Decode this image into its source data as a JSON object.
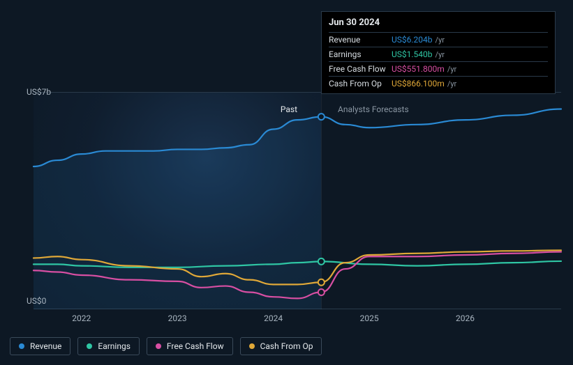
{
  "chart": {
    "y_axis": {
      "top_label": "US$7b",
      "bottom_label": "US$0",
      "min": 0,
      "max": 7
    },
    "x_axis": {
      "labels": [
        "2022",
        "2023",
        "2024",
        "2025",
        "2026"
      ],
      "min": 2021.5,
      "max": 2027.0,
      "past_end": 2024.5
    },
    "section_labels": {
      "past": "Past",
      "forecast": "Analysts Forecasts"
    },
    "background_color": "#0d1824",
    "grid_color": "#2a3a4a",
    "axis_text_color": "#a8b4bf",
    "series": [
      {
        "key": "revenue",
        "label": "Revenue",
        "color": "#2a8ad4",
        "points": [
          [
            2021.5,
            4.6
          ],
          [
            2021.75,
            4.8
          ],
          [
            2022.0,
            5.0
          ],
          [
            2022.25,
            5.1
          ],
          [
            2022.5,
            5.1
          ],
          [
            2022.75,
            5.1
          ],
          [
            2023.0,
            5.15
          ],
          [
            2023.25,
            5.15
          ],
          [
            2023.5,
            5.2
          ],
          [
            2023.75,
            5.3
          ],
          [
            2024.0,
            5.8
          ],
          [
            2024.25,
            6.1
          ],
          [
            2024.5,
            6.2
          ],
          [
            2024.75,
            5.95
          ],
          [
            2025.0,
            5.85
          ],
          [
            2025.5,
            5.95
          ],
          [
            2026.0,
            6.1
          ],
          [
            2026.5,
            6.25
          ],
          [
            2027.0,
            6.45
          ]
        ],
        "area_past": true
      },
      {
        "key": "earnings",
        "label": "Earnings",
        "color": "#2fc6a4",
        "points": [
          [
            2021.5,
            1.45
          ],
          [
            2021.75,
            1.45
          ],
          [
            2022.0,
            1.4
          ],
          [
            2022.5,
            1.35
          ],
          [
            2023.0,
            1.35
          ],
          [
            2023.5,
            1.4
          ],
          [
            2024.0,
            1.45
          ],
          [
            2024.25,
            1.5
          ],
          [
            2024.5,
            1.54
          ],
          [
            2025.0,
            1.45
          ],
          [
            2025.5,
            1.4
          ],
          [
            2026.0,
            1.45
          ],
          [
            2026.5,
            1.5
          ],
          [
            2027.0,
            1.55
          ]
        ]
      },
      {
        "key": "fcf",
        "label": "Free Cash Flow",
        "color": "#d84fa3",
        "points": [
          [
            2021.5,
            1.25
          ],
          [
            2021.75,
            1.2
          ],
          [
            2022.0,
            1.1
          ],
          [
            2022.5,
            0.95
          ],
          [
            2023.0,
            0.9
          ],
          [
            2023.25,
            0.7
          ],
          [
            2023.5,
            0.75
          ],
          [
            2023.75,
            0.55
          ],
          [
            2024.0,
            0.4
          ],
          [
            2024.25,
            0.35
          ],
          [
            2024.5,
            0.55
          ],
          [
            2024.75,
            1.3
          ],
          [
            2025.0,
            1.7
          ],
          [
            2025.5,
            1.7
          ],
          [
            2026.0,
            1.75
          ],
          [
            2026.5,
            1.8
          ],
          [
            2027.0,
            1.85
          ]
        ]
      },
      {
        "key": "cfo",
        "label": "Cash From Op",
        "color": "#e0a838",
        "points": [
          [
            2021.5,
            1.65
          ],
          [
            2021.75,
            1.7
          ],
          [
            2022.0,
            1.6
          ],
          [
            2022.5,
            1.4
          ],
          [
            2023.0,
            1.3
          ],
          [
            2023.25,
            1.05
          ],
          [
            2023.5,
            1.15
          ],
          [
            2023.75,
            0.95
          ],
          [
            2024.0,
            0.8
          ],
          [
            2024.25,
            0.8
          ],
          [
            2024.5,
            0.87
          ],
          [
            2024.75,
            1.5
          ],
          [
            2025.0,
            1.75
          ],
          [
            2025.5,
            1.8
          ],
          [
            2026.0,
            1.85
          ],
          [
            2026.5,
            1.88
          ],
          [
            2027.0,
            1.9
          ]
        ]
      }
    ],
    "markers": [
      {
        "series": "revenue",
        "x": 2024.5,
        "y": 6.2
      },
      {
        "series": "earnings",
        "x": 2024.5,
        "y": 1.54
      },
      {
        "series": "cfo",
        "x": 2024.5,
        "y": 0.87
      },
      {
        "series": "fcf",
        "x": 2024.5,
        "y": 0.55
      }
    ],
    "line_width": 2.2,
    "marker_radius": 4.5
  },
  "tooltip": {
    "title": "Jun 30 2024",
    "unit": "/yr",
    "rows": [
      {
        "label": "Revenue",
        "value": "US$6.204b",
        "color": "#2a8ad4"
      },
      {
        "label": "Earnings",
        "value": "US$1.540b",
        "color": "#2fc6a4"
      },
      {
        "label": "Free Cash Flow",
        "value": "US$551.800m",
        "color": "#d84fa3"
      },
      {
        "label": "Cash From Op",
        "value": "US$866.100m",
        "color": "#e0a838"
      }
    ]
  },
  "legend": [
    {
      "label": "Revenue",
      "color": "#2a8ad4"
    },
    {
      "label": "Earnings",
      "color": "#2fc6a4"
    },
    {
      "label": "Free Cash Flow",
      "color": "#d84fa3"
    },
    {
      "label": "Cash From Op",
      "color": "#e0a838"
    }
  ]
}
